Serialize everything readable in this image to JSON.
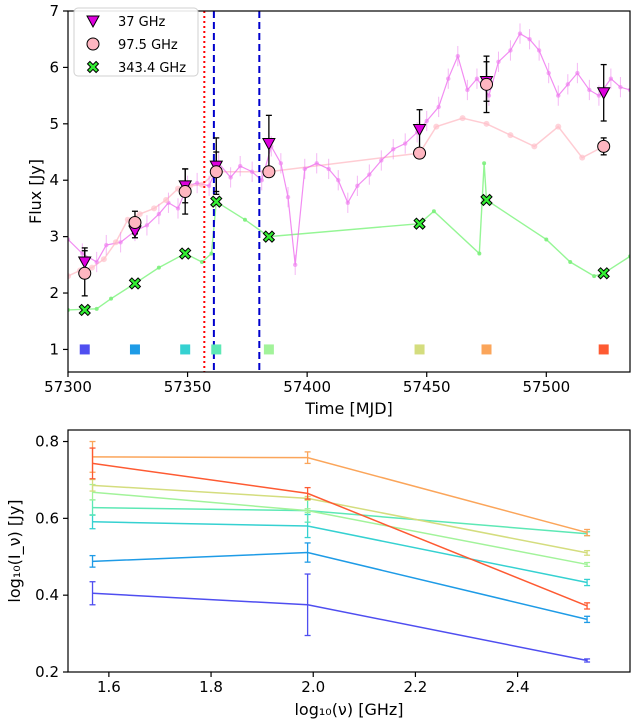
{
  "chart_data": [
    {
      "type": "scatter",
      "xlabel": "Time [MJD]",
      "ylabel": "Flux [Jy]",
      "xlim": [
        57300,
        57535
      ],
      "ylim": [
        0.6,
        7.0
      ],
      "xticks": [
        "57300",
        "57350",
        "57400",
        "57450",
        "57500"
      ],
      "yticks": [
        "1",
        "2",
        "3",
        "4",
        "5",
        "6",
        "7"
      ],
      "legend_position": "upper-left",
      "series": [
        {
          "name": "37 GHz",
          "color": "#dd00dd",
          "marker": "triangle-down",
          "points": [
            {
              "x": 57307,
              "y": 2.55,
              "err": 0.25
            },
            {
              "x": 57328,
              "y": 3.1,
              "err": 0.12
            },
            {
              "x": 57349,
              "y": 3.9,
              "err": 0.3
            },
            {
              "x": 57362,
              "y": 4.25,
              "err": 0.5
            },
            {
              "x": 57384,
              "y": 4.65,
              "err": 0.5
            },
            {
              "x": 57447,
              "y": 4.9,
              "err": 0.35
            },
            {
              "x": 57475,
              "y": 5.75,
              "err": 0.35
            },
            {
              "x": 57524,
              "y": 5.55,
              "err": 0.5
            }
          ]
        },
        {
          "name": "97.5 GHz",
          "color": "#ffb6c1",
          "marker": "circle",
          "points": [
            {
              "x": 57307,
              "y": 2.35,
              "err": 0.4
            },
            {
              "x": 57328,
              "y": 3.25,
              "err": 0.2
            },
            {
              "x": 57349,
              "y": 3.8,
              "err": 0.4
            },
            {
              "x": 57362,
              "y": 4.15,
              "err": 0.35
            },
            {
              "x": 57384,
              "y": 4.15,
              "err": 0.05
            },
            {
              "x": 57447,
              "y": 4.48,
              "err": 0.05
            },
            {
              "x": 57475,
              "y": 5.7,
              "err": 0.5
            },
            {
              "x": 57524,
              "y": 4.6,
              "err": 0.15
            }
          ]
        },
        {
          "name": "343.4 GHz",
          "color": "#33ee33",
          "marker": "x-filled",
          "points": [
            {
              "x": 57307,
              "y": 1.7
            },
            {
              "x": 57328,
              "y": 2.17
            },
            {
              "x": 57349,
              "y": 2.7
            },
            {
              "x": 57362,
              "y": 3.62
            },
            {
              "x": 57384,
              "y": 3.0
            },
            {
              "x": 57447,
              "y": 3.23
            },
            {
              "x": 57475,
              "y": 3.65
            },
            {
              "x": 57524,
              "y": 2.35
            }
          ]
        }
      ],
      "background_lines": {
        "magenta_light": [
          [
            57300,
            2.95
          ],
          [
            57306,
            2.7
          ],
          [
            57312,
            2.55
          ],
          [
            57316,
            2.85
          ],
          [
            57322,
            2.9
          ],
          [
            57328,
            3.1
          ],
          [
            57333,
            3.2
          ],
          [
            57338,
            3.4
          ],
          [
            57342,
            3.6
          ],
          [
            57346,
            3.5
          ],
          [
            57350,
            3.9
          ],
          [
            57354,
            3.95
          ],
          [
            57359,
            3.9
          ],
          [
            57363,
            4.3
          ],
          [
            57368,
            4.05
          ],
          [
            57372,
            4.25
          ],
          [
            57377,
            4.15
          ],
          [
            57381,
            4.0
          ],
          [
            57385,
            4.6
          ],
          [
            57389,
            4.3
          ],
          [
            57392,
            3.7
          ],
          [
            57395,
            2.5
          ],
          [
            57399,
            4.2
          ],
          [
            57404,
            4.3
          ],
          [
            57409,
            4.2
          ],
          [
            57413,
            4.0
          ],
          [
            57417,
            3.6
          ],
          [
            57421,
            3.9
          ],
          [
            57426,
            4.1
          ],
          [
            57431,
            4.35
          ],
          [
            57436,
            4.55
          ],
          [
            57441,
            4.65
          ],
          [
            57446,
            4.85
          ],
          [
            57450,
            5.05
          ],
          [
            57455,
            5.3
          ],
          [
            57459,
            5.8
          ],
          [
            57463,
            6.2
          ],
          [
            57467,
            5.6
          ],
          [
            57471,
            5.8
          ],
          [
            57476,
            5.5
          ],
          [
            57480,
            6.1
          ],
          [
            57485,
            6.3
          ],
          [
            57489,
            6.6
          ],
          [
            57493,
            6.5
          ],
          [
            57497,
            6.3
          ],
          [
            57501,
            5.9
          ],
          [
            57505,
            5.5
          ],
          [
            57509,
            5.7
          ],
          [
            57513,
            5.9
          ],
          [
            57518,
            5.6
          ],
          [
            57522,
            5.5
          ],
          [
            57527,
            5.8
          ],
          [
            57531,
            5.65
          ],
          [
            57535,
            5.6
          ]
        ],
        "pink_light": [
          [
            57300,
            2.3
          ],
          [
            57305,
            2.4
          ],
          [
            57310,
            2.45
          ],
          [
            57315,
            2.6
          ],
          [
            57320,
            2.9
          ],
          [
            57325,
            3.3
          ],
          [
            57330,
            3.4
          ],
          [
            57336,
            3.5
          ],
          [
            57341,
            3.65
          ],
          [
            57346,
            3.85
          ],
          [
            57351,
            3.9
          ],
          [
            57356,
            3.92
          ],
          [
            57362,
            4.15
          ],
          [
            57384,
            4.15
          ],
          [
            57447,
            4.48
          ],
          [
            57454,
            4.95
          ],
          [
            57465,
            5.1
          ],
          [
            57475,
            5.0
          ],
          [
            57485,
            4.8
          ],
          [
            57495,
            4.6
          ],
          [
            57505,
            4.95
          ],
          [
            57515,
            4.4
          ],
          [
            57524,
            4.6
          ]
        ],
        "green_light": [
          [
            57300,
            1.7
          ],
          [
            57312,
            1.72
          ],
          [
            57318,
            1.9
          ],
          [
            57328,
            2.17
          ],
          [
            57338,
            2.45
          ],
          [
            57349,
            2.7
          ],
          [
            57356,
            2.55
          ],
          [
            57360,
            2.7
          ],
          [
            57362,
            3.62
          ],
          [
            57374,
            3.3
          ],
          [
            57384,
            3.0
          ],
          [
            57447,
            3.23
          ],
          [
            57453,
            3.45
          ],
          [
            57472,
            2.7
          ],
          [
            57474,
            4.3
          ],
          [
            57475,
            3.65
          ],
          [
            57500,
            2.95
          ],
          [
            57510,
            2.55
          ],
          [
            57520,
            2.3
          ],
          [
            57524,
            2.35
          ],
          [
            57535,
            2.65
          ]
        ]
      },
      "vertical_lines": [
        {
          "x": 57357,
          "color": "#ff0000",
          "style": "dotted"
        },
        {
          "x": 57361,
          "color": "#0000cc",
          "style": "dashed"
        },
        {
          "x": 57380,
          "color": "#0000cc",
          "style": "dashed"
        }
      ],
      "epoch_markers": [
        {
          "x": 57307,
          "y": 1.0,
          "color": "#4f4ef0"
        },
        {
          "x": 57328,
          "y": 1.0,
          "color": "#1e9be6"
        },
        {
          "x": 57349,
          "y": 1.0,
          "color": "#35d1d1"
        },
        {
          "x": 57362,
          "y": 1.0,
          "color": "#5de8b5"
        },
        {
          "x": 57384,
          "y": 1.0,
          "color": "#a2f39a"
        },
        {
          "x": 57447,
          "y": 1.0,
          "color": "#d4dd7e"
        },
        {
          "x": 57475,
          "y": 1.0,
          "color": "#fba55a"
        },
        {
          "x": 57524,
          "y": 1.0,
          "color": "#fe5a32"
        }
      ]
    },
    {
      "type": "line",
      "xlabel": "log₁₀(ν) [GHz]",
      "ylabel": "log₁₀(I_ν) [Jy]",
      "xlim": [
        1.52,
        2.62
      ],
      "ylim": [
        0.2,
        0.83
      ],
      "xticks": [
        "1.6",
        "1.8",
        "2.0",
        "2.2",
        "2.4"
      ],
      "yticks": [
        "0.2",
        "0.4",
        "0.6",
        "0.8"
      ],
      "x": [
        1.568,
        1.989,
        2.536
      ],
      "series": [
        {
          "color": "#4f4ef0",
          "values": [
            0.405,
            0.375,
            0.23
          ],
          "errors": [
            0.03,
            0.08,
            0.004
          ]
        },
        {
          "color": "#1e9be6",
          "values": [
            0.488,
            0.511,
            0.337
          ],
          "errors": [
            0.015,
            0.025,
            0.008
          ]
        },
        {
          "color": "#35d1d1",
          "values": [
            0.591,
            0.58,
            0.433
          ],
          "errors": [
            0.018,
            0.03,
            0.008
          ]
        },
        {
          "color": "#5de8b5",
          "values": [
            0.628,
            0.62,
            0.56
          ],
          "errors": [
            0.02,
            0.03,
            0.005
          ]
        },
        {
          "color": "#a2f39a",
          "values": [
            0.668,
            0.62,
            0.48
          ],
          "errors": [
            0.02,
            0.005,
            0.005
          ]
        },
        {
          "color": "#d4dd7e",
          "values": [
            0.686,
            0.652,
            0.51
          ],
          "errors": [
            0.015,
            0.005,
            0.006
          ]
        },
        {
          "color": "#fba55a",
          "values": [
            0.76,
            0.758,
            0.563
          ],
          "errors": [
            0.04,
            0.015,
            0.008
          ]
        },
        {
          "color": "#fe5a32",
          "values": [
            0.743,
            0.665,
            0.372
          ],
          "errors": [
            0.04,
            0.015,
            0.008
          ]
        }
      ]
    }
  ]
}
